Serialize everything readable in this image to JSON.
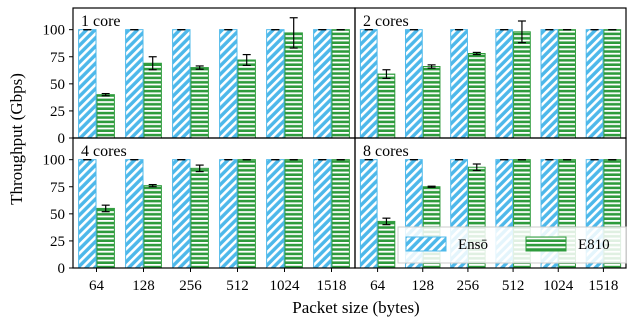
{
  "colors": {
    "enso_fill": "#4db8ea",
    "enso_stripe": "#ffffff",
    "e810_fill": "#2e9b3c",
    "e810_stripe": "#ffffff",
    "frame": "#000000"
  },
  "chart_data": {
    "type": "bar",
    "xlabel": "Packet size (bytes)",
    "ylabel": "Throughput (Gbps)",
    "ylim": [
      0,
      120
    ],
    "yticks": [
      0,
      25,
      50,
      75,
      100
    ],
    "categories": [
      "64",
      "128",
      "256",
      "512",
      "1024",
      "1518"
    ],
    "legend": {
      "placement": "bottom-right of bottom-right panel",
      "entries": [
        "Ensō",
        "E810"
      ]
    },
    "panels": [
      {
        "title": "1 core",
        "series": [
          {
            "name": "Ensō",
            "values": [
              100,
              100,
              100,
              100,
              100,
              100
            ]
          },
          {
            "name": "E810",
            "values": [
              40,
              69,
              65,
              72,
              97,
              100
            ],
            "errors": [
              1,
              6,
              1.5,
              5,
              14,
              0
            ]
          }
        ]
      },
      {
        "title": "2 cores",
        "series": [
          {
            "name": "Ensō",
            "values": [
              100,
              100,
              100,
              100,
              100,
              100
            ]
          },
          {
            "name": "E810",
            "values": [
              59,
              66,
              78,
              98,
              100,
              100
            ],
            "errors": [
              4,
              1.5,
              1,
              10,
              0,
              0
            ]
          }
        ]
      },
      {
        "title": "4 cores",
        "series": [
          {
            "name": "Ensō",
            "values": [
              100,
              100,
              100,
              100,
              100,
              100
            ]
          },
          {
            "name": "E810",
            "values": [
              55,
              76,
              92,
              100,
              100,
              100
            ],
            "errors": [
              3,
              1,
              3,
              0,
              0,
              0
            ]
          }
        ]
      },
      {
        "title": "8 cores",
        "series": [
          {
            "name": "Ensō",
            "values": [
              100,
              100,
              100,
              100,
              100,
              100
            ]
          },
          {
            "name": "E810",
            "values": [
              43,
              75,
              93,
              100,
              100,
              100
            ],
            "errors": [
              3,
              0.5,
              3,
              0,
              0,
              0
            ]
          }
        ]
      }
    ]
  }
}
